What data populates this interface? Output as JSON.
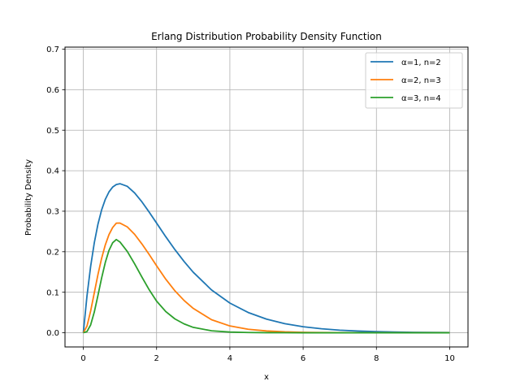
{
  "chart_data": {
    "type": "line",
    "title": "Erlang Distribution Probability Density Function",
    "xlabel": "x",
    "ylabel": "Probability Density",
    "xlim": [
      -0.5,
      10.5
    ],
    "ylim": [
      -0.035,
      0.705
    ],
    "xticks": [
      0,
      2,
      4,
      6,
      8,
      10
    ],
    "yticks": [
      0.0,
      0.1,
      0.2,
      0.3,
      0.4,
      0.5,
      0.6,
      0.7
    ],
    "grid": true,
    "legend_position": "top-right",
    "series": [
      {
        "name": "α=1, n=2",
        "color": "#1f77b4",
        "x": [
          0,
          0.1,
          0.2,
          0.3,
          0.4,
          0.5,
          0.6,
          0.7,
          0.8,
          0.9,
          1.0,
          1.2,
          1.4,
          1.6,
          1.8,
          2.0,
          2.25,
          2.5,
          2.75,
          3.0,
          3.5,
          4.0,
          4.5,
          5.0,
          5.5,
          6.0,
          6.5,
          7.0,
          7.5,
          8.0,
          8.5,
          9.0,
          9.5,
          10.0
        ],
        "y": [
          0.0,
          0.0905,
          0.1637,
          0.2222,
          0.2681,
          0.3033,
          0.3293,
          0.3476,
          0.3595,
          0.3659,
          0.3679,
          0.3614,
          0.3452,
          0.323,
          0.2975,
          0.2707,
          0.2371,
          0.2052,
          0.176,
          0.1494,
          0.1057,
          0.0733,
          0.05,
          0.0337,
          0.0225,
          0.0149,
          0.0098,
          0.0064,
          0.0042,
          0.0027,
          0.0017,
          0.0011,
          0.0007,
          0.0005
        ]
      },
      {
        "name": "α=2, n=3",
        "color": "#ff7f0e",
        "x": [
          0,
          0.1,
          0.2,
          0.3,
          0.4,
          0.5,
          0.6,
          0.7,
          0.8,
          0.9,
          1.0,
          1.2,
          1.4,
          1.6,
          1.8,
          2.0,
          2.25,
          2.5,
          2.75,
          3.0,
          3.5,
          4.0,
          4.5,
          5.0,
          5.5,
          6.0,
          6.5,
          7.0,
          7.5,
          8.0,
          8.5,
          9.0,
          9.5,
          10.0
        ],
        "y": [
          0.0,
          0.0164,
          0.0536,
          0.0988,
          0.1438,
          0.1839,
          0.2169,
          0.2421,
          0.2597,
          0.2705,
          0.2707,
          0.2613,
          0.243,
          0.2191,
          0.1928,
          0.1653,
          0.1323,
          0.1036,
          0.0797,
          0.0602,
          0.0322,
          0.0168,
          0.0087,
          0.0045,
          0.0022,
          0.0011,
          0.0005,
          0.0003,
          0.0001,
          0.0001,
          0.0,
          0.0,
          0.0,
          0.0
        ]
      },
      {
        "name": "α=3, n=4",
        "color": "#2ca02c",
        "x": [
          0,
          0.1,
          0.2,
          0.3,
          0.4,
          0.5,
          0.6,
          0.7,
          0.8,
          0.9,
          1.0,
          1.2,
          1.4,
          1.6,
          1.8,
          2.0,
          2.25,
          2.5,
          2.75,
          3.0,
          3.5,
          4.0,
          4.5,
          5.0,
          5.5,
          6.0,
          6.5,
          7.0,
          7.5,
          8.0,
          8.5,
          9.0,
          9.5,
          10.0
        ],
        "y": [
          0.0,
          0.0029,
          0.0193,
          0.0512,
          0.0925,
          0.1353,
          0.1735,
          0.2032,
          0.222,
          0.2301,
          0.224,
          0.2007,
          0.1702,
          0.1374,
          0.1058,
          0.0781,
          0.0524,
          0.0342,
          0.0219,
          0.0133,
          0.0049,
          0.0017,
          0.0006,
          0.0002,
          0.0001,
          0.0,
          0.0,
          0.0,
          0.0,
          0.0,
          0.0,
          0.0,
          0.0,
          0.0
        ]
      }
    ]
  }
}
